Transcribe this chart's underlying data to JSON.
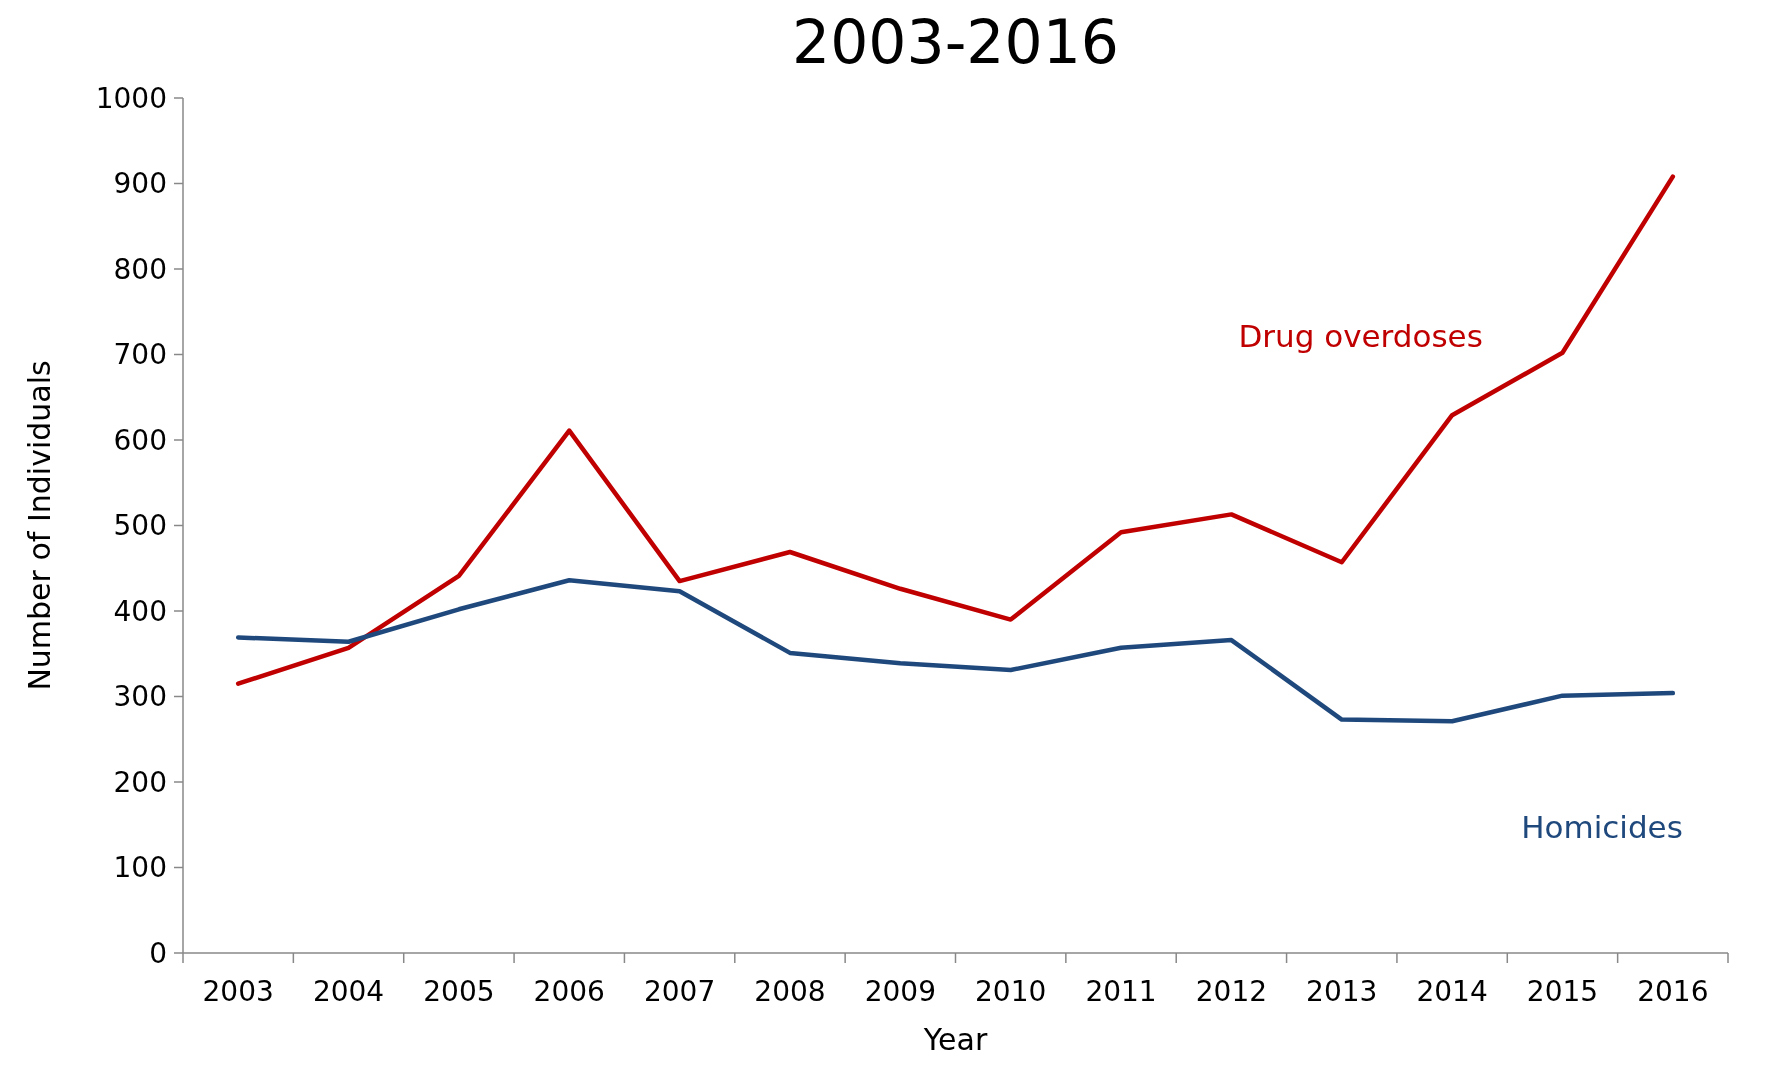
{
  "chart_data": {
    "type": "line",
    "title": "2003-2016",
    "xlabel": "Year",
    "ylabel": "Number of Individuals",
    "categories": [
      "2003",
      "2004",
      "2005",
      "2006",
      "2007",
      "2008",
      "2009",
      "2010",
      "2011",
      "2012",
      "2013",
      "2014",
      "2015",
      "2016"
    ],
    "series": [
      {
        "name": "Drug overdoses",
        "color": "#c00000",
        "values": [
          315,
          357,
          441,
          611,
          435,
          469,
          426,
          390,
          492,
          513,
          457,
          629,
          702,
          908
        ]
      },
      {
        "name": "Homicides",
        "color": "#1f497d",
        "values": [
          369,
          364,
          402,
          436,
          423,
          351,
          339,
          331,
          357,
          366,
          273,
          271,
          301,
          304
        ]
      }
    ],
    "ylim": [
      0,
      1000
    ],
    "yticks": [
      0,
      100,
      200,
      300,
      400,
      500,
      600,
      700,
      800,
      900,
      1000
    ],
    "grid": false,
    "marker": "none",
    "line_style": "solid"
  }
}
